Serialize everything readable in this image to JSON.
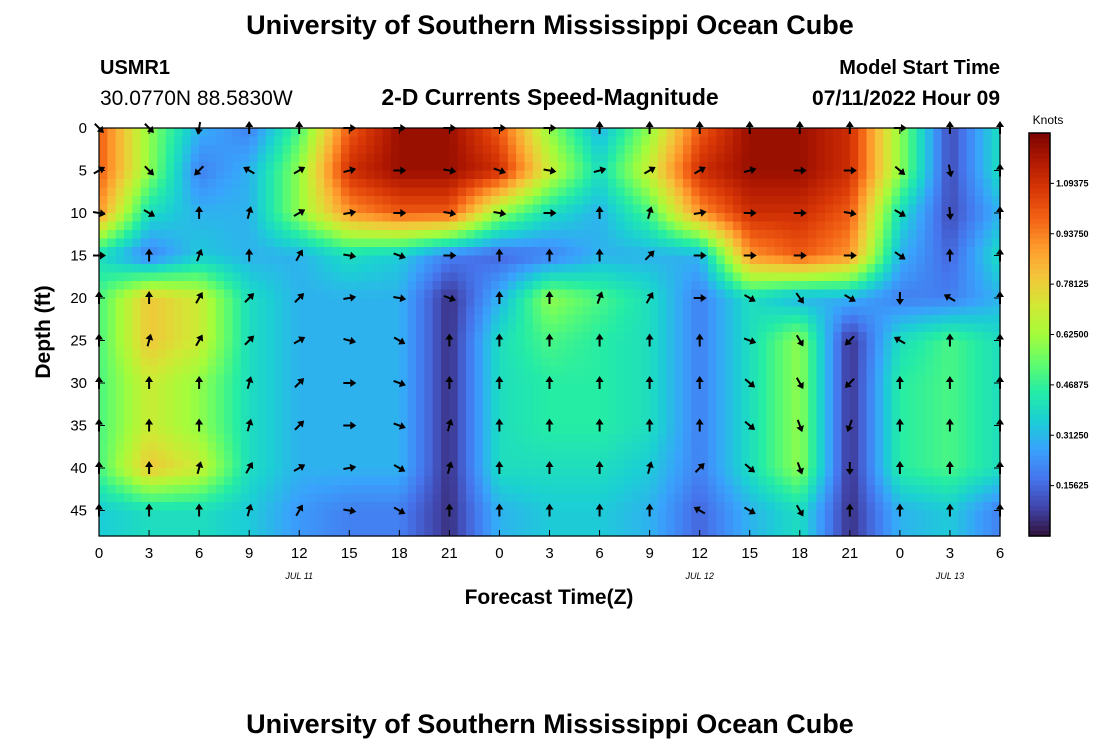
{
  "page": {
    "title": "University of Southern Mississippi Ocean Cube",
    "footer_title": "University of Southern Mississippi Ocean Cube"
  },
  "header": {
    "station": "USMR1",
    "coords": "30.0770N  88.5830W",
    "chart_title": "2-D Currents Speed-Magnitude",
    "model_label": "Model Start Time",
    "model_time": "07/11/2022 Hour 09"
  },
  "chart_data": {
    "type": "heatmap",
    "title": "2-D Currents Speed-Magnitude",
    "xlabel": "Forecast Time(Z)",
    "ylabel": "Depth (ft)",
    "x_tick_labels": [
      "0",
      "3",
      "6",
      "9",
      "12",
      "15",
      "18",
      "21",
      "0",
      "3",
      "6",
      "9",
      "12",
      "15",
      "18",
      "21",
      "0",
      "3",
      "6"
    ],
    "date_labels": [
      {
        "text": "JUL 11",
        "tick_index": 4
      },
      {
        "text": "JUL 12",
        "tick_index": 12
      },
      {
        "text": "JUL 13",
        "tick_index": 17
      }
    ],
    "y_ticks": [
      0,
      5,
      10,
      15,
      20,
      25,
      30,
      35,
      40,
      45
    ],
    "ylim": [
      0,
      48
    ],
    "x_range_hours": [
      0,
      54
    ],
    "colorbar": {
      "unit": "Knots",
      "range": [
        0,
        1.25
      ],
      "tick_values": [
        1.09375,
        0.9375,
        0.78125,
        0.625,
        0.46875,
        0.3125,
        0.15625
      ],
      "tick_labels": [
        "1.09375",
        "0.93750",
        "0.78125",
        "0.62500",
        "0.46875",
        "0.31250",
        "0.15625"
      ],
      "colors": [
        "#30123b",
        "#4145ab",
        "#4675ed",
        "#39a2fc",
        "#1bcfd4",
        "#24eca6",
        "#61fc6c",
        "#a4fc3b",
        "#d1e834",
        "#f3c63a",
        "#fe9b2d",
        "#f36315",
        "#d93806",
        "#b11901",
        "#7a0402"
      ]
    },
    "grid": false,
    "arrows_shown": true,
    "speed_grid": {
      "depth_rows_ft": [
        0,
        5,
        10,
        15,
        20,
        25,
        30,
        35,
        40,
        45
      ],
      "time_cols_hr": [
        0,
        3,
        6,
        9,
        12,
        15,
        18,
        21,
        24,
        27,
        30,
        33,
        36,
        39,
        42,
        45,
        48,
        51,
        54
      ],
      "values": [
        [
          1.0,
          0.6,
          0.3,
          0.2,
          0.5,
          1.0,
          1.2,
          1.2,
          1.0,
          0.6,
          0.3,
          0.6,
          1.0,
          1.2,
          1.2,
          1.1,
          0.6,
          0.1,
          0.4
        ],
        [
          1.0,
          0.6,
          0.2,
          0.3,
          0.6,
          1.1,
          1.2,
          1.2,
          1.1,
          0.7,
          0.4,
          0.7,
          1.1,
          1.2,
          1.2,
          1.1,
          0.6,
          0.1,
          0.4
        ],
        [
          0.9,
          0.4,
          0.3,
          0.3,
          0.6,
          0.9,
          1.0,
          1.0,
          0.6,
          0.4,
          0.3,
          0.5,
          0.9,
          1.1,
          1.1,
          1.0,
          0.4,
          0.1,
          0.3
        ],
        [
          0.4,
          0.2,
          0.35,
          0.3,
          0.3,
          0.4,
          0.35,
          0.2,
          0.15,
          0.2,
          0.3,
          0.3,
          0.3,
          0.9,
          1.0,
          0.9,
          0.3,
          0.15,
          0.4
        ],
        [
          0.5,
          0.8,
          0.7,
          0.4,
          0.3,
          0.3,
          0.3,
          0.05,
          0.3,
          0.6,
          0.5,
          0.4,
          0.2,
          0.4,
          0.3,
          0.3,
          0.2,
          0.2,
          0.3
        ],
        [
          0.5,
          0.8,
          0.7,
          0.4,
          0.3,
          0.3,
          0.3,
          0.05,
          0.4,
          0.5,
          0.45,
          0.4,
          0.2,
          0.4,
          0.6,
          0.05,
          0.4,
          0.5,
          0.4
        ],
        [
          0.5,
          0.7,
          0.6,
          0.4,
          0.3,
          0.3,
          0.3,
          0.05,
          0.4,
          0.45,
          0.45,
          0.4,
          0.2,
          0.4,
          0.6,
          0.05,
          0.45,
          0.5,
          0.4
        ],
        [
          0.5,
          0.7,
          0.6,
          0.4,
          0.3,
          0.3,
          0.3,
          0.05,
          0.4,
          0.45,
          0.45,
          0.4,
          0.2,
          0.4,
          0.6,
          0.05,
          0.45,
          0.5,
          0.4
        ],
        [
          0.5,
          0.8,
          0.7,
          0.4,
          0.3,
          0.3,
          0.3,
          0.05,
          0.4,
          0.4,
          0.4,
          0.35,
          0.2,
          0.4,
          0.6,
          0.05,
          0.45,
          0.5,
          0.4
        ],
        [
          0.35,
          0.4,
          0.4,
          0.35,
          0.25,
          0.2,
          0.2,
          0.05,
          0.3,
          0.35,
          0.35,
          0.3,
          0.15,
          0.3,
          0.4,
          0.05,
          0.3,
          0.35,
          0.2
        ]
      ]
    },
    "direction_grid_deg": [
      [
        135,
        135,
        190,
        0,
        0,
        90,
        90,
        90,
        90,
        90,
        0,
        0,
        0,
        0,
        0,
        0,
        90,
        0,
        0
      ],
      [
        60,
        135,
        225,
        300,
        60,
        75,
        90,
        100,
        110,
        100,
        75,
        60,
        60,
        75,
        90,
        90,
        130,
        170,
        0
      ],
      [
        100,
        120,
        0,
        15,
        60,
        80,
        90,
        100,
        100,
        90,
        0,
        15,
        80,
        90,
        90,
        100,
        120,
        175,
        0
      ],
      [
        90,
        0,
        20,
        0,
        30,
        100,
        110,
        90,
        0,
        0,
        0,
        45,
        90,
        90,
        90,
        90,
        125,
        0,
        0
      ],
      [
        0,
        0,
        30,
        45,
        45,
        80,
        100,
        110,
        0,
        0,
        20,
        30,
        90,
        120,
        145,
        120,
        180,
        300,
        0
      ],
      [
        0,
        15,
        30,
        45,
        60,
        105,
        120,
        0,
        0,
        0,
        0,
        0,
        0,
        110,
        150,
        225,
        300,
        0,
        0
      ],
      [
        0,
        0,
        0,
        15,
        45,
        90,
        110,
        0,
        0,
        0,
        0,
        0,
        0,
        130,
        150,
        225,
        0,
        0,
        0
      ],
      [
        0,
        0,
        0,
        15,
        45,
        90,
        110,
        15,
        0,
        0,
        0,
        0,
        0,
        130,
        160,
        200,
        0,
        0,
        0
      ],
      [
        0,
        0,
        15,
        30,
        60,
        80,
        120,
        15,
        0,
        0,
        0,
        15,
        45,
        130,
        160,
        180,
        0,
        0,
        0
      ],
      [
        0,
        0,
        0,
        15,
        30,
        100,
        120,
        0,
        0,
        0,
        0,
        0,
        300,
        120,
        150,
        0,
        0,
        0,
        0
      ]
    ]
  }
}
